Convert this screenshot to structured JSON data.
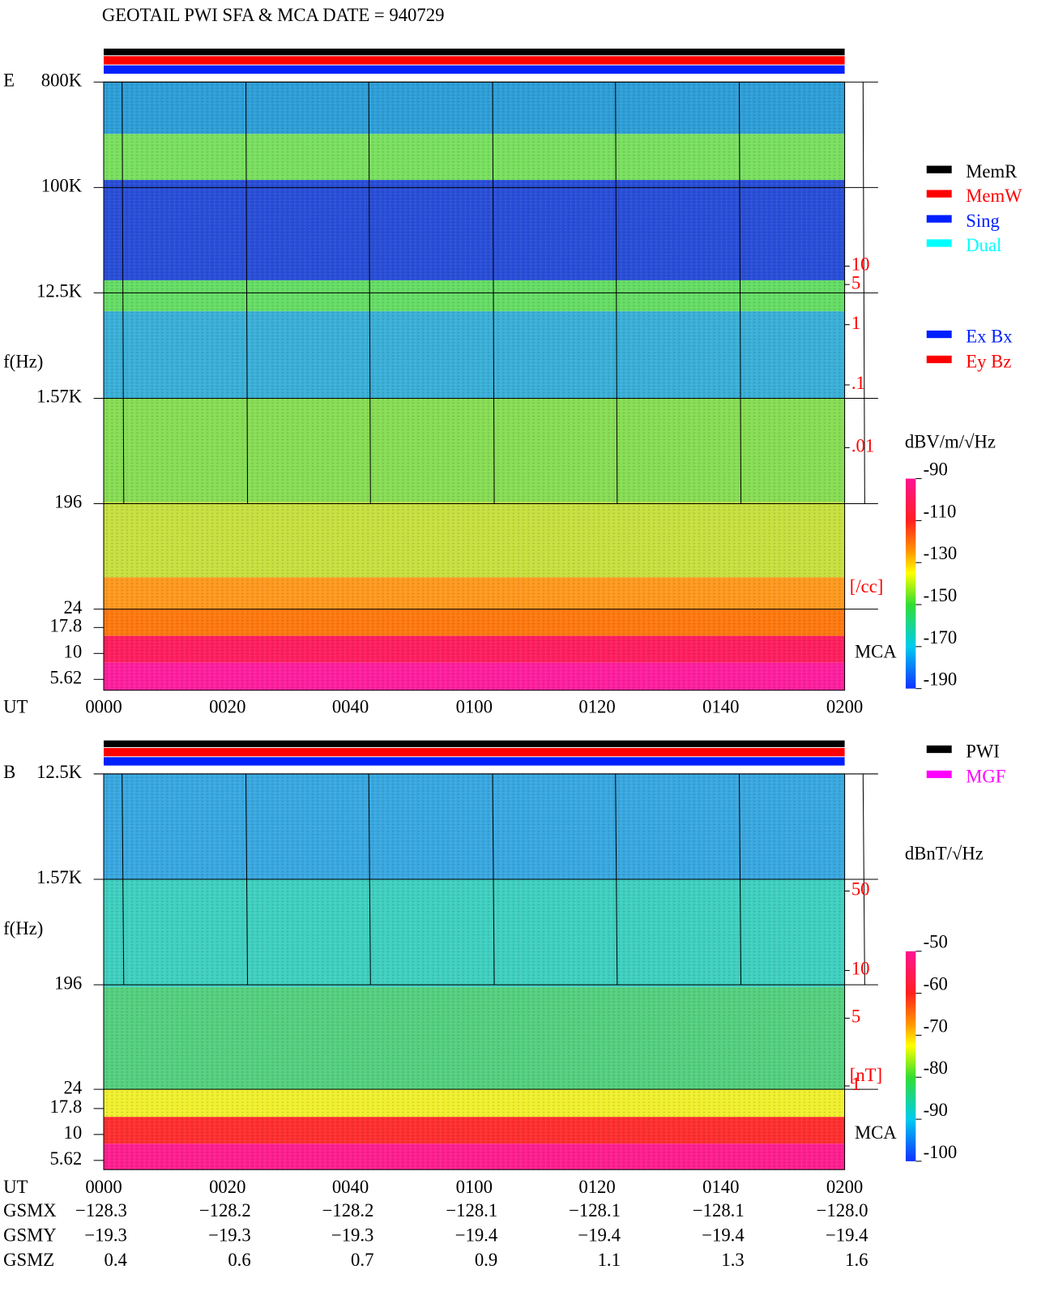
{
  "title": "GEOTAIL  PWI SFA & MCA   DATE = 940729",
  "panel_e": {
    "label": "E",
    "y_label": "f(Hz)",
    "freq_ticks": [
      "800K",
      "100K",
      "12.5K",
      "1.57K",
      "196",
      "24",
      "17.8",
      "10",
      "5.62"
    ],
    "density_ticks": [
      "10",
      "5",
      "1",
      ".1",
      ".01"
    ],
    "density_unit": "[/cc]",
    "mca": "MCA",
    "legend_mode": [
      "MemR",
      "MemW",
      "Sing",
      "Dual"
    ],
    "legend_ant": [
      "Ex Bx",
      "Ey Bz"
    ],
    "colorbar_unit": "dBV/m/√Hz",
    "colorbar_ticks": [
      -90,
      -110,
      -130,
      -150,
      -170,
      -190
    ]
  },
  "panel_b": {
    "label": "B",
    "y_label": "f(Hz)",
    "freq_ticks": [
      "12.5K",
      "1.57K",
      "196",
      "24",
      "17.8",
      "10",
      "5.62"
    ],
    "field_ticks": [
      "50",
      "10",
      "5",
      "1"
    ],
    "field_unit": "[nT]",
    "mca": "MCA",
    "legend": [
      "PWI",
      "MGF"
    ],
    "colorbar_unit": "dBnT/√Hz",
    "colorbar_ticks": [
      -50,
      -60,
      -70,
      -80,
      -90,
      -100
    ]
  },
  "ut_label": "UT",
  "ut_ticks": [
    "0000",
    "0020",
    "0040",
    "0100",
    "0120",
    "0140",
    "0200"
  ],
  "orbit": [
    {
      "name": "GSMX",
      "values": [
        "−128.3",
        "−128.2",
        "−128.2",
        "−128.1",
        "−128.1",
        "−128.1",
        "−128.0"
      ]
    },
    {
      "name": "GSMY",
      "values": [
        "−19.3",
        "−19.3",
        "−19.3",
        "−19.4",
        "−19.4",
        "−19.4",
        "−19.4"
      ]
    },
    {
      "name": "GSMZ",
      "values": [
        "0.4",
        "0.6",
        "0.7",
        "0.9",
        "1.1",
        "1.3",
        "1.6"
      ]
    }
  ]
}
